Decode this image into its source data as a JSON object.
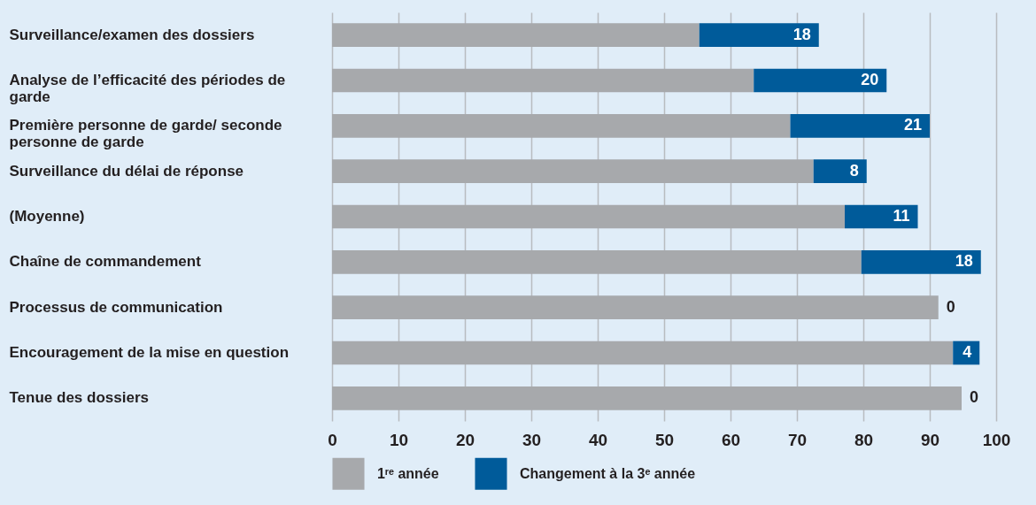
{
  "chart_data": {
    "type": "bar",
    "orientation": "horizontal",
    "stacked": true,
    "categories": [
      "Surveillance/examen des dossiers",
      "Analyse de l’efficacité des périodes de garde",
      "Première personne de garde/ seconde personne de garde",
      "Surveillance du délai de réponse",
      "(Moyenne)",
      "Chaîne de commandement",
      "Processus de communication",
      "Encouragement de la mise en question",
      "Tenue des dossiers"
    ],
    "series": [
      {
        "name": "1ʳᵉ année",
        "color": "#a7a9ac",
        "values": [
          55.3,
          63.5,
          69,
          72.5,
          77.2,
          79.7,
          91.3,
          93.5,
          94.8
        ]
      },
      {
        "name": "Changement à la 3ᵉ année",
        "color": "#005b9a",
        "values": [
          18,
          20,
          21,
          8,
          11,
          18,
          0,
          4,
          0
        ],
        "value_labels": [
          "18",
          "20",
          "21",
          "8",
          "11",
          "18",
          "0",
          "4",
          "0"
        ]
      }
    ],
    "xlim": [
      0,
      100
    ],
    "xticks": [
      0,
      10,
      20,
      30,
      40,
      50,
      60,
      70,
      80,
      90,
      100
    ],
    "grid": "x",
    "legend": "bottom"
  }
}
